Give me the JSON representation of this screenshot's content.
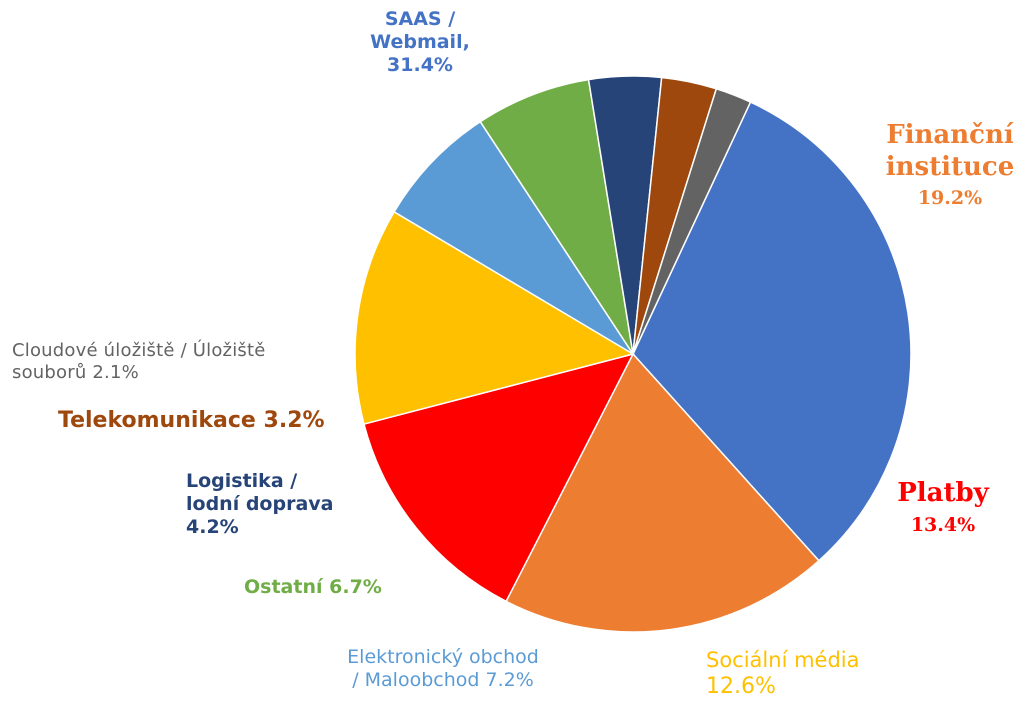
{
  "chart_data": {
    "type": "pie",
    "slices": [
      {
        "label_lines": [
          "SAAS /",
          "Webmail,"
        ],
        "value_text": "31.4%",
        "value": 31.4,
        "color": "#4472C4"
      },
      {
        "label_lines": [
          "Finanční",
          "instituce"
        ],
        "value_text": "19.2%",
        "value": 19.2,
        "color": "#ED7D31"
      },
      {
        "label_lines": [
          "Platby"
        ],
        "value_text": "13.4%",
        "value": 13.4,
        "color": "#FF0000"
      },
      {
        "label_lines": [
          "Sociální média"
        ],
        "value_text": "12.6%",
        "value": 12.6,
        "color": "#FFC000"
      },
      {
        "label_lines": [
          "Elektronický obchod",
          "/ Maloobchod"
        ],
        "value_text": "7.2%",
        "value": 7.2,
        "color": "#5B9BD5"
      },
      {
        "label_lines": [
          "Ostatní"
        ],
        "value_text": "6.7%",
        "value": 6.7,
        "color": "#70AD47"
      },
      {
        "label_lines": [
          "Logistika /",
          "lodní doprava"
        ],
        "value_text": "4.2%",
        "value": 4.2,
        "color": "#264478"
      },
      {
        "label_lines": [
          "Telekomunikace"
        ],
        "value_text": "3.2%",
        "value": 3.2,
        "color": "#9E480E"
      },
      {
        "label_lines": [
          "Cloudové úložiště / Úložiště",
          "souborů"
        ],
        "value_text": "2.1%",
        "value": 2.1,
        "color": "#636363"
      }
    ],
    "label_colors": {
      "saas": "#4472C4",
      "finance": "#ED7D31",
      "platby": "#FF0000",
      "social": "#FFC000",
      "ecommerce": "#5B9BD5",
      "ostatni": "#70AD47",
      "logistika": "#264478",
      "telekom": "#9E480E",
      "cloud": "#636363"
    }
  }
}
